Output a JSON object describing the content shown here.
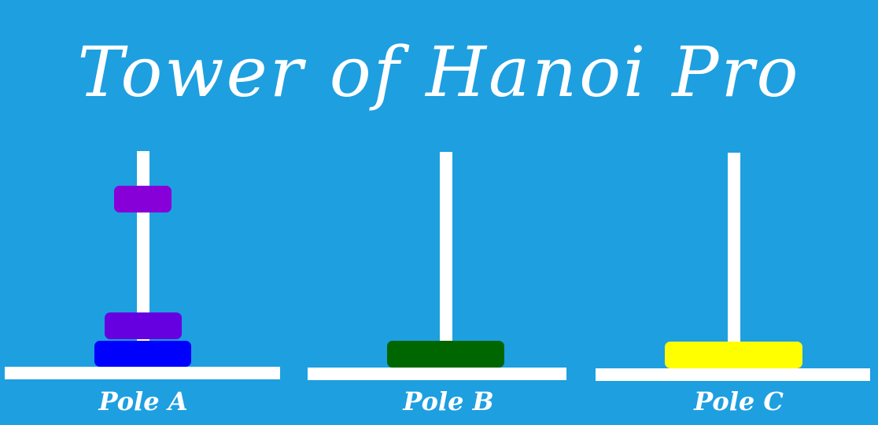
{
  "title": "Tower of Hanoi Pro",
  "colors": {
    "background": "#1e9fe0",
    "pole": "#ffffff"
  },
  "poles": [
    {
      "label": "Pole A",
      "disks": [
        {
          "color": "#0000ff"
        },
        {
          "color": "#6600e0"
        },
        {
          "color": "#8800d8"
        }
      ]
    },
    {
      "label": "Pole B",
      "disks": [
        {
          "color": "#006600"
        }
      ]
    },
    {
      "label": "Pole C",
      "disks": [
        {
          "color": "#ffff00"
        }
      ]
    }
  ]
}
